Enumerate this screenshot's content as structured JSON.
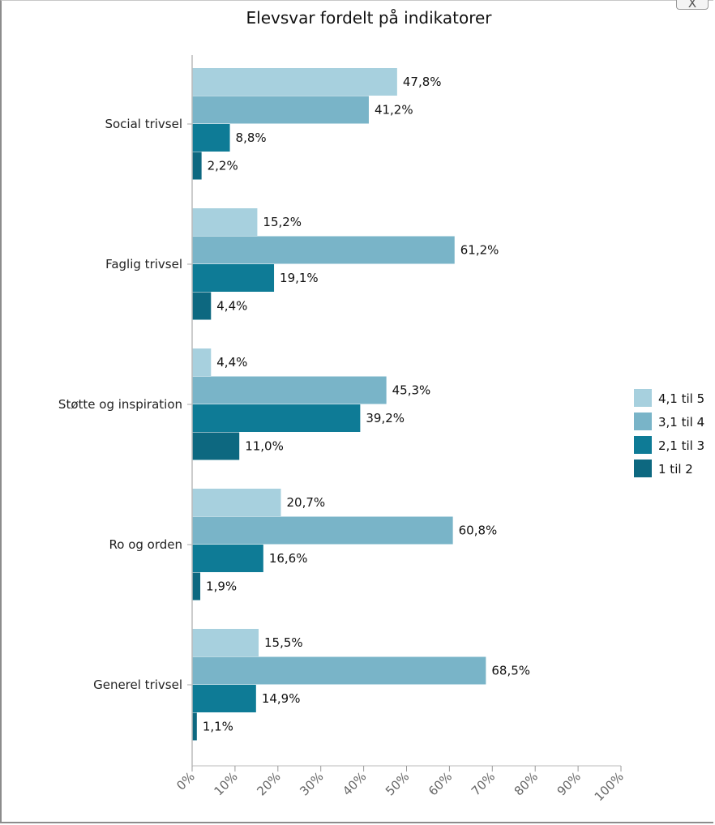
{
  "window": {
    "close_label": "X"
  },
  "chart_data": {
    "type": "bar",
    "orientation": "horizontal",
    "title": "Elevsvar fordelt på indikatorer",
    "categories": [
      "Social trivsel",
      "Faglig trivsel",
      "Støtte og inspiration",
      "Ro og orden",
      "Generel trivsel"
    ],
    "series": [
      {
        "name": "4,1 til 5",
        "color": "#a7d0de",
        "values": [
          47.8,
          15.2,
          4.4,
          20.7,
          15.5
        ],
        "labels": [
          "47,8%",
          "15,2%",
          "4,4%",
          "20,7%",
          "15,5%"
        ]
      },
      {
        "name": "3,1 til 4",
        "color": "#79b4c8",
        "values": [
          41.2,
          61.2,
          45.3,
          60.8,
          68.5
        ],
        "labels": [
          "41,2%",
          "61,2%",
          "45,3%",
          "60,8%",
          "68,5%"
        ]
      },
      {
        "name": "2,1 til 3",
        "color": "#0e7b96",
        "values": [
          8.8,
          19.1,
          39.2,
          16.6,
          14.9
        ],
        "labels": [
          "8,8%",
          "19,1%",
          "39,2%",
          "16,6%",
          "14,9%"
        ]
      },
      {
        "name": "1 til 2",
        "color": "#0d6880",
        "values": [
          2.2,
          4.4,
          11.0,
          1.9,
          1.1
        ],
        "labels": [
          "2,2%",
          "4,4%",
          "11,0%",
          "1,9%",
          "1,1%"
        ]
      }
    ],
    "xlim": [
      0,
      100
    ],
    "x_ticks": [
      "0%",
      "10%",
      "20%",
      "30%",
      "40%",
      "50%",
      "60%",
      "70%",
      "80%",
      "90%",
      "100%"
    ],
    "legend_entries": [
      "4,1 til 5",
      "3,1 til 4",
      "2,1 til 3",
      "1 til 2"
    ],
    "legend_position": "right",
    "grid": false
  }
}
